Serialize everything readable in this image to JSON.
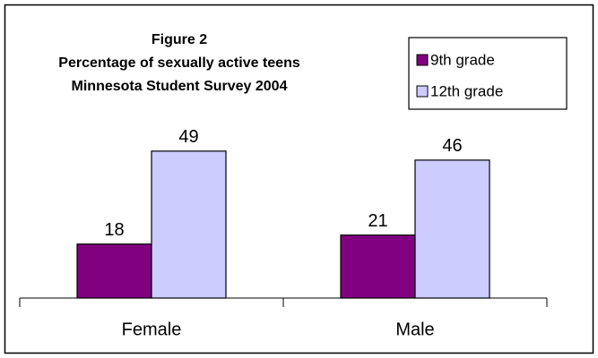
{
  "chart_data": {
    "type": "bar",
    "title": [
      "Figure 2",
      "Percentage of sexually active teens",
      "Minnesota Student Survey 2004"
    ],
    "categories": [
      "Female",
      "Male"
    ],
    "series": [
      {
        "name": "9th grade",
        "color": "#800080",
        "values": [
          18,
          21
        ]
      },
      {
        "name": "12th grade",
        "color": "#ccccff",
        "values": [
          49,
          46
        ]
      }
    ],
    "ylim": [
      0,
      60
    ],
    "legend": "top-right"
  }
}
